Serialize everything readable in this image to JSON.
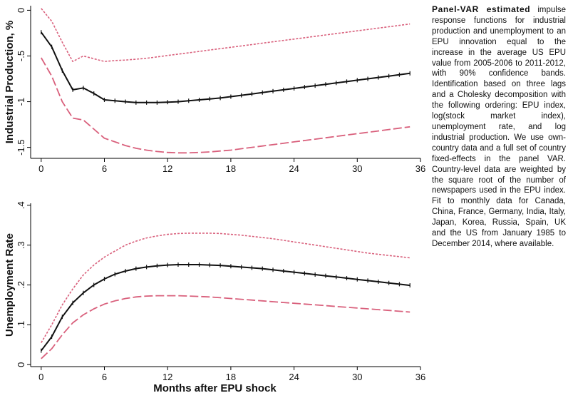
{
  "chart_data": [
    {
      "type": "line",
      "ylabel": "Industrial Production, %",
      "xlabel": "",
      "xlim": [
        -1,
        36
      ],
      "ylim": [
        -1.62,
        0.05
      ],
      "xticks": [
        0,
        6,
        12,
        18,
        24,
        30,
        36
      ],
      "xtick_labels": [
        "0",
        "6",
        "12",
        "18",
        "24",
        "30",
        "36"
      ],
      "yticks": [
        0,
        -0.5,
        -1,
        -1.5
      ],
      "ytick_labels": [
        "0",
        "-.5",
        "-1",
        "-1.5"
      ],
      "grid": false,
      "x": [
        0,
        1,
        2,
        3,
        4,
        5,
        6,
        7,
        8,
        9,
        10,
        11,
        12,
        13,
        14,
        15,
        16,
        17,
        18,
        19,
        20,
        21,
        22,
        23,
        24,
        25,
        26,
        27,
        28,
        29,
        30,
        31,
        32,
        33,
        34,
        35
      ],
      "series": [
        {
          "role": "upper band",
          "color": "#d9607c",
          "style": "short-dash",
          "values": [
            0.02,
            -0.12,
            -0.35,
            -0.56,
            -0.5,
            -0.53,
            -0.56,
            -0.55,
            -0.545,
            -0.535,
            -0.525,
            -0.51,
            -0.495,
            -0.48,
            -0.465,
            -0.45,
            -0.435,
            -0.42,
            -0.405,
            -0.39,
            -0.375,
            -0.36,
            -0.345,
            -0.33,
            -0.315,
            -0.3,
            -0.285,
            -0.27,
            -0.255,
            -0.24,
            -0.225,
            -0.21,
            -0.195,
            -0.18,
            -0.165,
            -0.15
          ]
        },
        {
          "role": "estimate",
          "color": "#111111",
          "style": "solid-markers",
          "values": [
            -0.24,
            -0.4,
            -0.66,
            -0.87,
            -0.85,
            -0.91,
            -0.98,
            -0.99,
            -1.0,
            -1.01,
            -1.01,
            -1.01,
            -1.005,
            -1.0,
            -0.99,
            -0.98,
            -0.97,
            -0.96,
            -0.945,
            -0.93,
            -0.915,
            -0.9,
            -0.885,
            -0.87,
            -0.855,
            -0.84,
            -0.825,
            -0.81,
            -0.795,
            -0.78,
            -0.765,
            -0.75,
            -0.735,
            -0.72,
            -0.705,
            -0.69
          ]
        },
        {
          "role": "lower band",
          "color": "#d9607c",
          "style": "long-dash",
          "values": [
            -0.52,
            -0.72,
            -1.0,
            -1.18,
            -1.2,
            -1.3,
            -1.4,
            -1.44,
            -1.48,
            -1.51,
            -1.53,
            -1.545,
            -1.555,
            -1.56,
            -1.56,
            -1.555,
            -1.55,
            -1.54,
            -1.53,
            -1.515,
            -1.5,
            -1.485,
            -1.47,
            -1.455,
            -1.44,
            -1.425,
            -1.41,
            -1.395,
            -1.38,
            -1.365,
            -1.35,
            -1.335,
            -1.32,
            -1.305,
            -1.29,
            -1.275
          ]
        }
      ]
    },
    {
      "type": "line",
      "ylabel": "Unemployment Rate",
      "xlabel": "Months after EPU shock",
      "xlim": [
        -1,
        36
      ],
      "ylim": [
        -0.005,
        0.405
      ],
      "xticks": [
        0,
        6,
        12,
        18,
        24,
        30,
        36
      ],
      "xtick_labels": [
        "0",
        "6",
        "12",
        "18",
        "24",
        "30",
        "36"
      ],
      "yticks": [
        0,
        0.1,
        0.2,
        0.3,
        0.4
      ],
      "ytick_labels": [
        "0",
        ".1",
        ".2",
        ".3",
        ".4"
      ],
      "grid": false,
      "x": [
        0,
        1,
        2,
        3,
        4,
        5,
        6,
        7,
        8,
        9,
        10,
        11,
        12,
        13,
        14,
        15,
        16,
        17,
        18,
        19,
        20,
        21,
        22,
        23,
        24,
        25,
        26,
        27,
        28,
        29,
        30,
        31,
        32,
        33,
        34,
        35
      ],
      "series": [
        {
          "role": "upper band",
          "color": "#d9607c",
          "style": "short-dash",
          "values": [
            0.055,
            0.1,
            0.15,
            0.19,
            0.225,
            0.25,
            0.27,
            0.285,
            0.3,
            0.31,
            0.318,
            0.323,
            0.327,
            0.329,
            0.33,
            0.33,
            0.33,
            0.329,
            0.327,
            0.325,
            0.322,
            0.319,
            0.316,
            0.312,
            0.308,
            0.304,
            0.3,
            0.296,
            0.292,
            0.288,
            0.284,
            0.28,
            0.277,
            0.274,
            0.271,
            0.268
          ]
        },
        {
          "role": "estimate",
          "color": "#111111",
          "style": "solid-markers",
          "values": [
            0.035,
            0.07,
            0.12,
            0.155,
            0.18,
            0.2,
            0.215,
            0.227,
            0.235,
            0.241,
            0.245,
            0.248,
            0.25,
            0.251,
            0.251,
            0.251,
            0.25,
            0.249,
            0.247,
            0.245,
            0.243,
            0.241,
            0.238,
            0.235,
            0.232,
            0.229,
            0.226,
            0.223,
            0.22,
            0.217,
            0.214,
            0.211,
            0.208,
            0.205,
            0.202,
            0.199
          ]
        },
        {
          "role": "lower band",
          "color": "#d9607c",
          "style": "long-dash",
          "values": [
            0.015,
            0.04,
            0.075,
            0.105,
            0.125,
            0.14,
            0.152,
            0.16,
            0.166,
            0.17,
            0.172,
            0.173,
            0.173,
            0.173,
            0.172,
            0.171,
            0.17,
            0.168,
            0.166,
            0.164,
            0.162,
            0.16,
            0.158,
            0.156,
            0.154,
            0.152,
            0.15,
            0.148,
            0.146,
            0.144,
            0.142,
            0.14,
            0.138,
            0.136,
            0.134,
            0.132
          ]
        }
      ]
    }
  ],
  "caption": {
    "lead": "Panel-VAR estimated",
    "text": "impulse response functions for industrial production and unemployment to an EPU innovation equal to the increase in the average US EPU value from 2005-2006 to 2011-2012, with 90% confidence bands. Identification based on three lags and a Cholesky decomposition with the following ordering: EPU index, log(stock market index), unemployment rate, and log industrial production. We use own-country data and a full set of country fixed-effects in the panel VAR. Country-level data are weighted by the square root of the number of newspapers used in the EPU index. Fit to monthly data for Canada, China, France, Germany, India, Italy, Japan, Korea, Russia, Spain, UK and the US from January 1985 to December 2014, where available."
  }
}
